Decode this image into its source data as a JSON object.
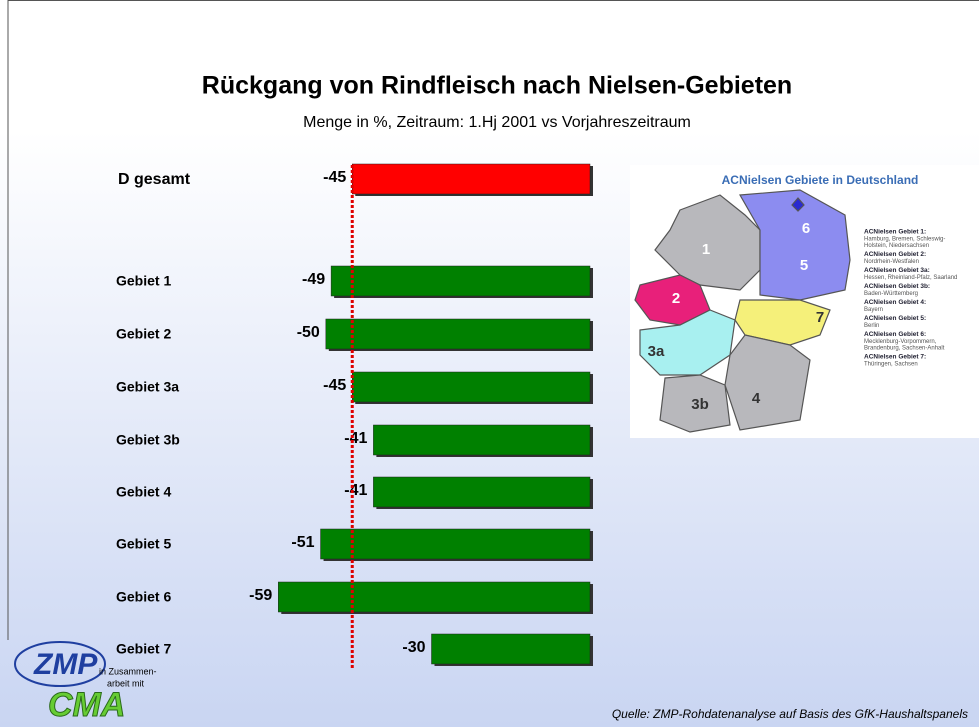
{
  "chart_data": {
    "type": "bar",
    "title": "Rückgang von Rindfleisch nach Nielsen-Gebieten",
    "subtitle": "Menge in %, Zeitraum: 1.Hj 2001 vs Vorjahreszeitraum",
    "categories": [
      "D gesamt",
      "Gebiet 1",
      "Gebiet 2",
      "Gebiet 3a",
      "Gebiet 3b",
      "Gebiet 4",
      "Gebiet 5",
      "Gebiet 6",
      "Gebiet 7"
    ],
    "values": [
      -45,
      -49,
      -50,
      -45,
      -41,
      -41,
      -51,
      -59,
      -30
    ],
    "colors": [
      "#ff0000",
      "#008000",
      "#008000",
      "#008000",
      "#008000",
      "#008000",
      "#008000",
      "#008000",
      "#008000"
    ],
    "xlim": [
      -60,
      0
    ]
  },
  "map": {
    "title": "ACNielsen Gebiete in Deutschland",
    "regions": [
      "1",
      "2",
      "3a",
      "3b",
      "4",
      "5",
      "6",
      "7"
    ],
    "legend": [
      {
        "heading": "ACNielsen Gebiet 1:",
        "text": [
          "Hamburg, Bremen, Schleswig-",
          "Holstein, Niedersachsen"
        ]
      },
      {
        "heading": "ACNielsen Gebiet 2:",
        "text": [
          "Nordrhein-Westfalen"
        ]
      },
      {
        "heading": "ACNielsen Gebiet 3a:",
        "text": [
          "Hessen, Rheinland-Pfalz, Saarland"
        ]
      },
      {
        "heading": "ACNielsen Gebiet 3b:",
        "text": [
          "Baden-Württemberg"
        ]
      },
      {
        "heading": "ACNielsen Gebiet 4:",
        "text": [
          "Bayern"
        ]
      },
      {
        "heading": "ACNielsen Gebiet 5:",
        "text": [
          "Berlin"
        ]
      },
      {
        "heading": "ACNielsen Gebiet 6:",
        "text": [
          "Mecklenburg-Vorpommern,",
          "Brandenburg, Sachsen-Anhalt"
        ]
      },
      {
        "heading": "ACNielsen Gebiet 7:",
        "text": [
          "Thüringen, Sachsen"
        ]
      }
    ]
  },
  "logo": {
    "name": "ZMP",
    "text": [
      "in Zusammen-",
      "arbeit mit"
    ],
    "partner": "CMA"
  },
  "source": "Quelle: ZMP-Rohdatenanalyse auf Basis des GfK-Haushaltspanels"
}
